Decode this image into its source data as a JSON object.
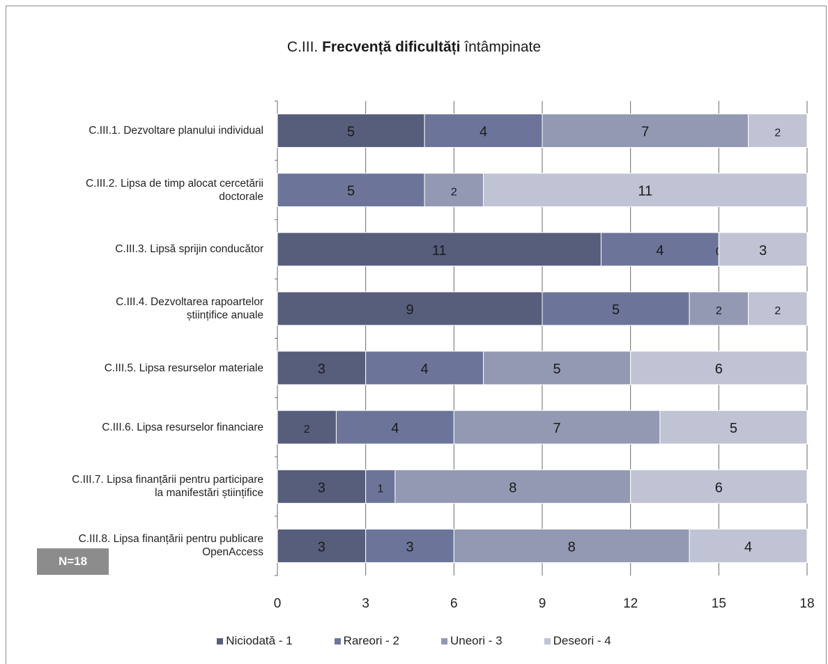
{
  "title_prefix": "C.III.",
  "title_bold": "Frecvență dificultăți",
  "title_suffix": "întâmpinate",
  "n_label": "N=18",
  "colors": {
    "Niciodată - 1": "#575e7c",
    "Rareori - 2": "#6c7599",
    "Uneori - 3": "#9398b3",
    "Deseori - 4": "#c0c3d4"
  },
  "chart_data": {
    "type": "bar",
    "orientation": "horizontal",
    "stacked": true,
    "categories": [
      "C.III.1. Dezvoltare planului individual",
      "C.III.2. Lipsa de timp alocat cercetării doctorale",
      "C.III.3. Lipsă sprijin conducător",
      "C.III.4. Dezvoltarea rapoartelor științifice anuale",
      "C.III.5. Lipsa resurselor materiale",
      "C.III.6. Lipsa resurselor financiare",
      "C.III.7. Lipsa finanțării pentru participare la manifestări științifice",
      "C.III.8. Lipsa finanțării pentru publicare OpenAccess"
    ],
    "category_lines": [
      [
        "C.III.1. Dezvoltare planului individual"
      ],
      [
        "C.III.2. Lipsa de timp alocat cercetării",
        "doctorale"
      ],
      [
        "C.III.3. Lipsă sprijin conducător"
      ],
      [
        "C.III.4. Dezvoltarea rapoartelor",
        "științifice anuale"
      ],
      [
        "C.III.5. Lipsa resurselor materiale"
      ],
      [
        "C.III.6. Lipsa resurselor financiare"
      ],
      [
        "C.III.7. Lipsa finanțării pentru participare",
        "la manifestări științifice"
      ],
      [
        "C.III.8. Lipsa finanțării pentru publicare",
        "OpenAccess"
      ]
    ],
    "series": [
      {
        "name": "Niciodată - 1",
        "values": [
          5,
          null,
          11,
          9,
          3,
          2,
          3,
          3
        ]
      },
      {
        "name": "Rareori - 2",
        "values": [
          4,
          5,
          4,
          5,
          4,
          4,
          1,
          3
        ]
      },
      {
        "name": "Uneori - 3",
        "values": [
          7,
          2,
          0,
          2,
          5,
          7,
          8,
          8
        ]
      },
      {
        "name": "Deseori - 4",
        "values": [
          2,
          11,
          3,
          2,
          6,
          5,
          6,
          4
        ]
      }
    ],
    "xlim": [
      0,
      18
    ],
    "xticks": [
      "0",
      "3",
      "6",
      "9",
      "12",
      "15",
      "18"
    ],
    "grid": true,
    "legend": "bottom",
    "xlabel": "",
    "ylabel": ""
  }
}
